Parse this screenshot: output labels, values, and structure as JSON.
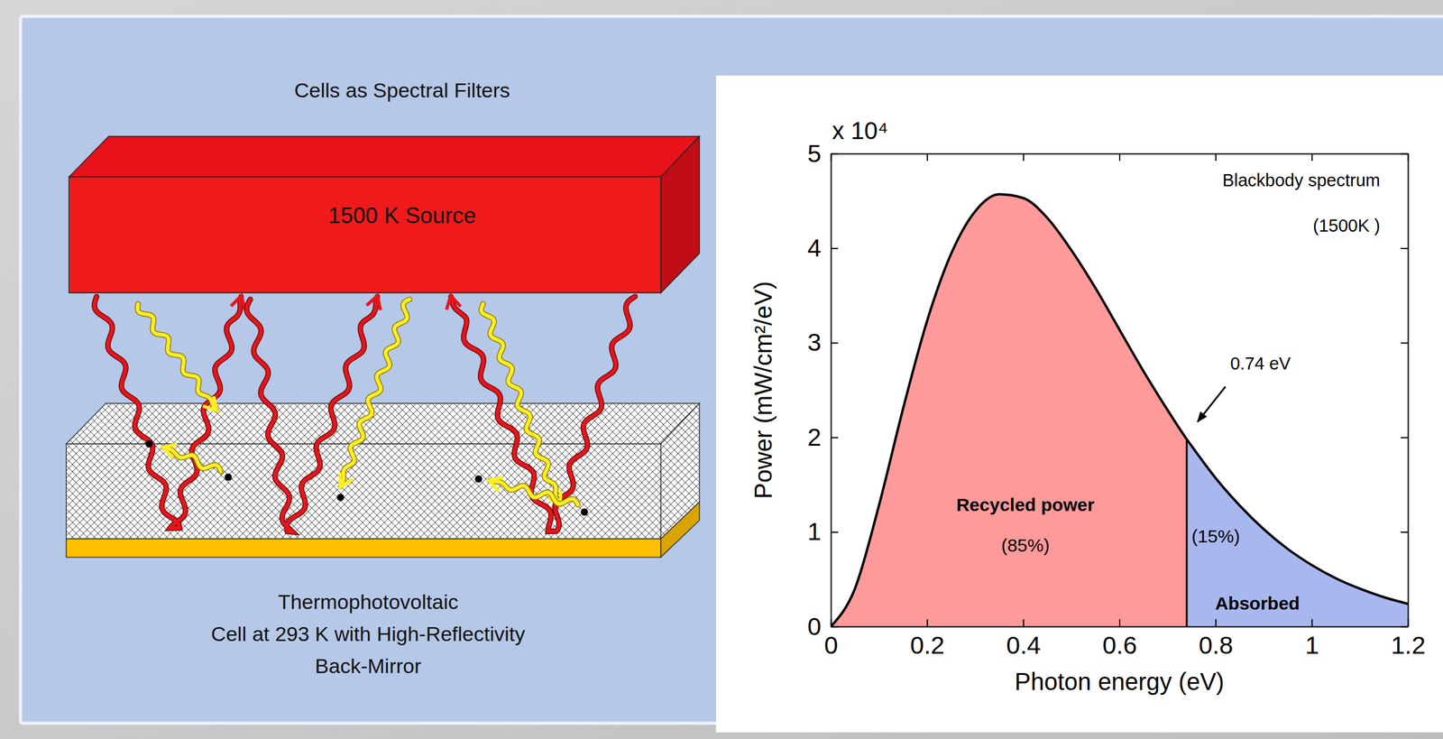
{
  "diagram": {
    "title": "Cells as Spectral Filters",
    "source_label": "1500 K Source",
    "cell_caption": [
      "Thermophotovoltaic",
      "Cell at 293 K with High-Reflectivity",
      "Back-Mirror"
    ]
  },
  "chart_data": {
    "type": "area",
    "xlabel": "Photon energy (eV)",
    "ylabel": "Power (mW/cm²/eV)",
    "y_multiplier": "x 10⁴",
    "x": [
      0,
      0.05,
      0.1,
      0.15,
      0.2,
      0.25,
      0.3,
      0.35,
      0.4,
      0.45,
      0.5,
      0.55,
      0.6,
      0.65,
      0.7,
      0.74,
      0.75,
      0.8,
      0.85,
      0.9,
      0.95,
      1,
      1.05,
      1.1,
      1.15,
      1.2
    ],
    "series": [
      {
        "color": "#000000",
        "values": [
          0,
          0.4,
          1.28,
          2.3,
          3.23,
          3.94,
          4.39,
          4.57,
          4.53,
          4.32,
          3.98,
          3.58,
          3.14,
          2.7,
          2.29,
          1.98,
          1.91,
          1.57,
          1.28,
          1.03,
          0.82,
          0.65,
          0.51,
          0.4,
          0.31,
          0.24
        ]
      }
    ],
    "regions": [
      {
        "label": "Recycled power",
        "share": {
          "value": 85,
          "label": "(85%)"
        },
        "xlim": [
          0,
          0.74
        ],
        "color": "#ff9a9a"
      },
      {
        "label": "Absorbed",
        "share": {
          "value": 15,
          "label": "(15%)"
        },
        "xlim": [
          0.74,
          1.2
        ],
        "color": "#a9b7ef"
      }
    ],
    "annotations": [
      {
        "text": "Blackbody spectrum"
      },
      {
        "text": "(1500K )"
      },
      {
        "text": "0.74 eV",
        "x": 0.74
      }
    ],
    "xlim": [
      0,
      1.2
    ],
    "xticks": [
      0,
      0.2,
      0.4,
      0.6,
      0.8,
      1,
      1.2
    ],
    "ylim": [
      0,
      5
    ],
    "yticks": [
      0,
      1,
      2,
      3,
      4,
      5
    ],
    "grid": false
  }
}
